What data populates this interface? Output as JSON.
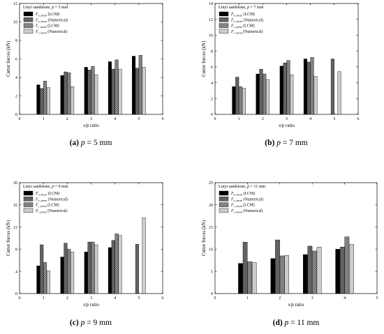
{
  "panels": [
    {
      "id": "a",
      "caption_letter": "(a)",
      "caption_text": "p = 5 mm",
      "chart_data": {
        "type": "bar",
        "legend_title": "Linyi sandstone, p = 5 mm",
        "xlabel": "s/p ratio",
        "ylabel": "Cutter forces (kN)",
        "xlim": [
          0,
          6
        ],
        "ylim": [
          0,
          12
        ],
        "xticks": [
          0,
          1,
          2,
          3,
          4,
          5,
          6
        ],
        "yticks": [
          0,
          2,
          4,
          6,
          8,
          10,
          12
        ],
        "categories": [
          1,
          2,
          3,
          4,
          5
        ],
        "series": [
          {
            "name": "Fn_mean (LCM)",
            "values": [
              3.2,
              4.2,
              5.1,
              5.7,
              6.3
            ]
          },
          {
            "name": "Fn_mean (Numerical)",
            "values": [
              2.8,
              4.6,
              4.8,
              4.9,
              5.0
            ]
          },
          {
            "name": "Fr_mean (LCM)",
            "values": [
              3.6,
              4.5,
              5.2,
              5.9,
              6.4
            ]
          },
          {
            "name": "Fr_mean (Numerical)",
            "values": [
              2.9,
              3.0,
              4.3,
              4.9,
              5.1
            ]
          }
        ]
      }
    },
    {
      "id": "b",
      "caption_letter": "(b)",
      "caption_text": "p = 7 mm",
      "chart_data": {
        "type": "bar",
        "legend_title": "Linyi sandstone, p = 7 mm",
        "xlabel": "s/p ratio",
        "ylabel": "Cutter forces (kN)",
        "xlim": [
          0,
          6
        ],
        "ylim": [
          0,
          14
        ],
        "xticks": [
          0,
          1,
          2,
          3,
          4,
          5,
          6
        ],
        "yticks": [
          0,
          2,
          4,
          6,
          8,
          10,
          12,
          14
        ],
        "categories": [
          1,
          2,
          3,
          4,
          5
        ],
        "series": [
          {
            "name": "Fn_mean (LCM)",
            "values": [
              3.5,
              5.1,
              6.1,
              7.0,
              null
            ]
          },
          {
            "name": "Fn_mean (Numerical)",
            "values": [
              4.7,
              5.7,
              6.5,
              6.6,
              7.0
            ]
          },
          {
            "name": "Fr_mean (LCM)",
            "values": [
              3.5,
              5.1,
              6.8,
              7.2,
              null
            ]
          },
          {
            "name": "Fr_mean (Numerical)",
            "values": [
              3.3,
              4.4,
              5.0,
              4.8,
              5.4
            ]
          }
        ]
      }
    },
    {
      "id": "c",
      "caption_letter": "(c)",
      "caption_text": "p = 9 mm",
      "chart_data": {
        "type": "bar",
        "legend_title": "Linyi sandstone, p = 9 mm",
        "xlabel": "s/p ratio",
        "ylabel": "Cutter forces (kN)",
        "xlim": [
          0,
          6
        ],
        "ylim": [
          0,
          20
        ],
        "xticks": [
          0,
          1,
          2,
          3,
          4,
          5,
          6
        ],
        "yticks": [
          0,
          4,
          8,
          12,
          16,
          20
        ],
        "categories": [
          1,
          2,
          3,
          4,
          5
        ],
        "series": [
          {
            "name": "Fn_mean (LCM)",
            "values": [
              5.0,
              6.6,
              7.5,
              8.3,
              null
            ]
          },
          {
            "name": "Fn_mean (Numerical)",
            "values": [
              8.8,
              9.1,
              9.3,
              9.6,
              8.9
            ]
          },
          {
            "name": "Fr_mean (LCM)",
            "values": [
              5.6,
              8.0,
              9.3,
              10.8,
              null
            ]
          },
          {
            "name": "Fr_mean (Numerical)",
            "values": [
              4.1,
              7.5,
              8.8,
              10.5,
              13.7
            ]
          }
        ]
      }
    },
    {
      "id": "d",
      "caption_letter": "(d)",
      "caption_text": "p = 11 mm",
      "chart_data": {
        "type": "bar",
        "legend_title": "Linyi sandstone, p = 11 mm",
        "xlabel": "s/p ratio",
        "ylabel": "Cutter forces (kN)",
        "xlim": [
          0,
          5
        ],
        "ylim": [
          0,
          25
        ],
        "xticks": [
          0,
          1,
          2,
          3,
          4,
          5
        ],
        "yticks": [
          0,
          5,
          10,
          15,
          20,
          25
        ],
        "categories": [
          1,
          2,
          3,
          4
        ],
        "series": [
          {
            "name": "Fn_mean (LCM)",
            "values": [
              6.8,
              7.9,
              8.8,
              10.0
            ]
          },
          {
            "name": "Fn_mean (Numerical)",
            "values": [
              11.6,
              12.1,
              10.7,
              10.5
            ]
          },
          {
            "name": "Fr_mean (LCM)",
            "values": [
              7.2,
              8.5,
              9.6,
              12.8
            ]
          },
          {
            "name": "Fr_mean (Numerical)",
            "values": [
              7.0,
              8.6,
              10.5,
              11.1
            ]
          }
        ]
      }
    }
  ],
  "series_styles": [
    {
      "fill": "#000000",
      "pattern": "solid",
      "label_main": "F",
      "label_sub": "n_mean",
      "label_tail": " (LCM)"
    },
    {
      "fill": "#333333",
      "pattern": "checker",
      "label_main": "F",
      "label_sub": "n_mean",
      "label_tail": " (Numerical)"
    },
    {
      "fill": "#666666",
      "pattern": "diag",
      "label_main": "F",
      "label_sub": "r_mean",
      "label_tail": " (LCM)"
    },
    {
      "fill": "#cccccc",
      "pattern": "solid",
      "label_main": "F",
      "label_sub": "r_mean",
      "label_tail": " (Numerical)"
    }
  ]
}
